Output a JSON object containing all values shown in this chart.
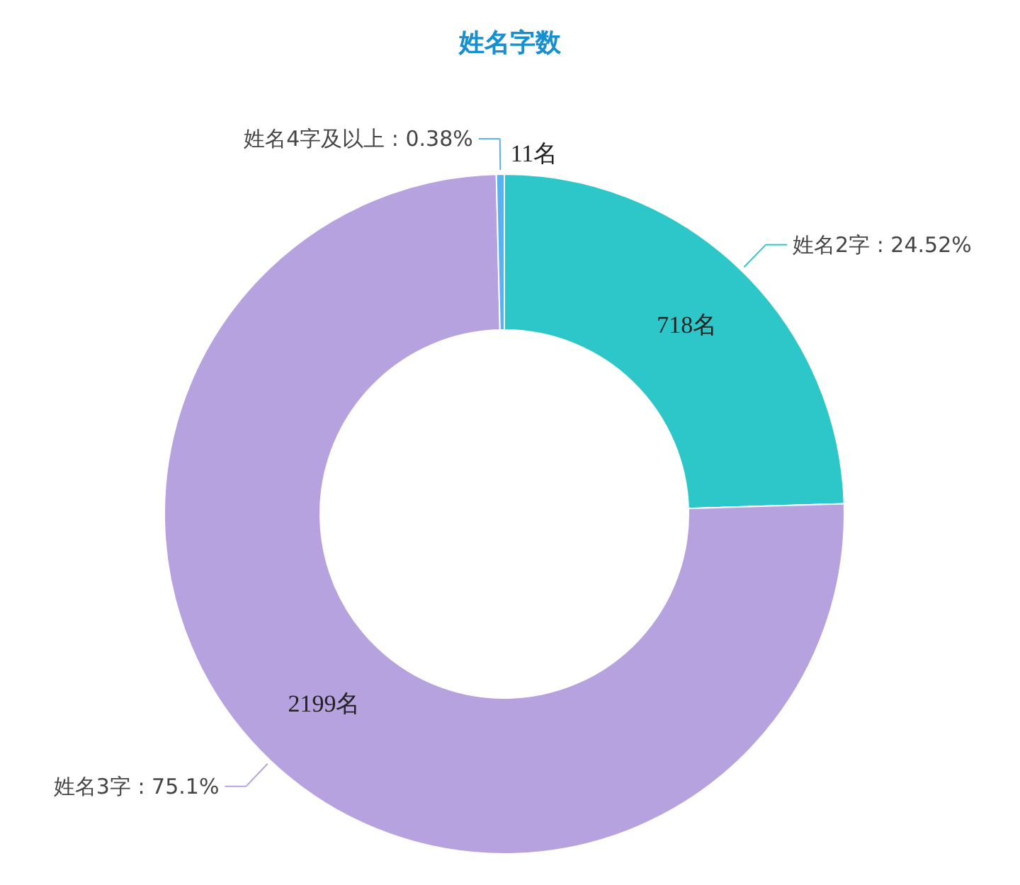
{
  "chart_data": {
    "type": "donut",
    "title": "姓名字数",
    "categories": [
      "姓名2字 : 24.52%",
      "姓名3字 : 75.1%",
      "姓名4字及以上 : 0.38%"
    ],
    "values": [
      718,
      2199,
      11
    ],
    "value_labels": [
      "718名",
      "2199名",
      "11名"
    ],
    "colors": [
      "#2ec7c9",
      "#b6a2de",
      "#5ab1ef"
    ]
  }
}
